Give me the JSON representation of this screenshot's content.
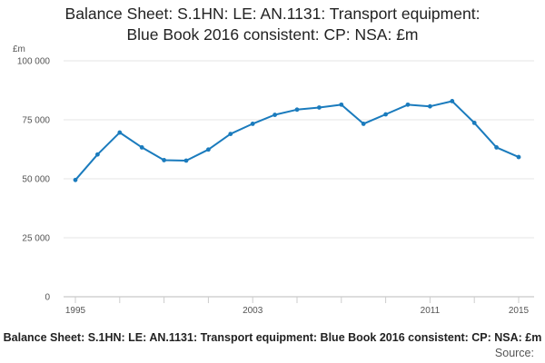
{
  "chart_data": {
    "type": "line",
    "title_lines": [
      "Balance Sheet: S.1HN: LE: AN.1131: Transport equipment:",
      "Blue Book 2016 consistent: CP: NSA: £m"
    ],
    "ylabel": "£m",
    "xlabel": "",
    "x_tick_labels": [
      "1995",
      "2003",
      "2011",
      "2015"
    ],
    "y_tick_labels": [
      "0",
      "25 000",
      "50 000",
      "75 000",
      "100 000"
    ],
    "ylim": [
      0,
      100000
    ],
    "xlim": [
      1995,
      2015
    ],
    "y_ticks": [
      0,
      25000,
      50000,
      75000,
      100000
    ],
    "x_ticks": [
      1995,
      2003,
      2011,
      2015
    ],
    "grid": "horizontal",
    "legend": "none",
    "line_color": "#1a7bbd",
    "x": [
      1995,
      1996,
      1997,
      1998,
      1999,
      2000,
      2001,
      2002,
      2003,
      2004,
      2005,
      2006,
      2007,
      2008,
      2009,
      2010,
      2011,
      2012,
      2013,
      2014,
      2015
    ],
    "values": [
      49500,
      60300,
      69600,
      63300,
      57900,
      57700,
      62400,
      69000,
      73300,
      77100,
      79300,
      80200,
      81400,
      73300,
      77300,
      81400,
      80700,
      82900,
      73700,
      63300,
      59200
    ]
  },
  "footer": {
    "caption": "Balance Sheet: S.1HN: LE: AN.1131: Transport equipment: Blue Book 2016 consistent: CP: NSA: £m",
    "source": "Source:"
  }
}
